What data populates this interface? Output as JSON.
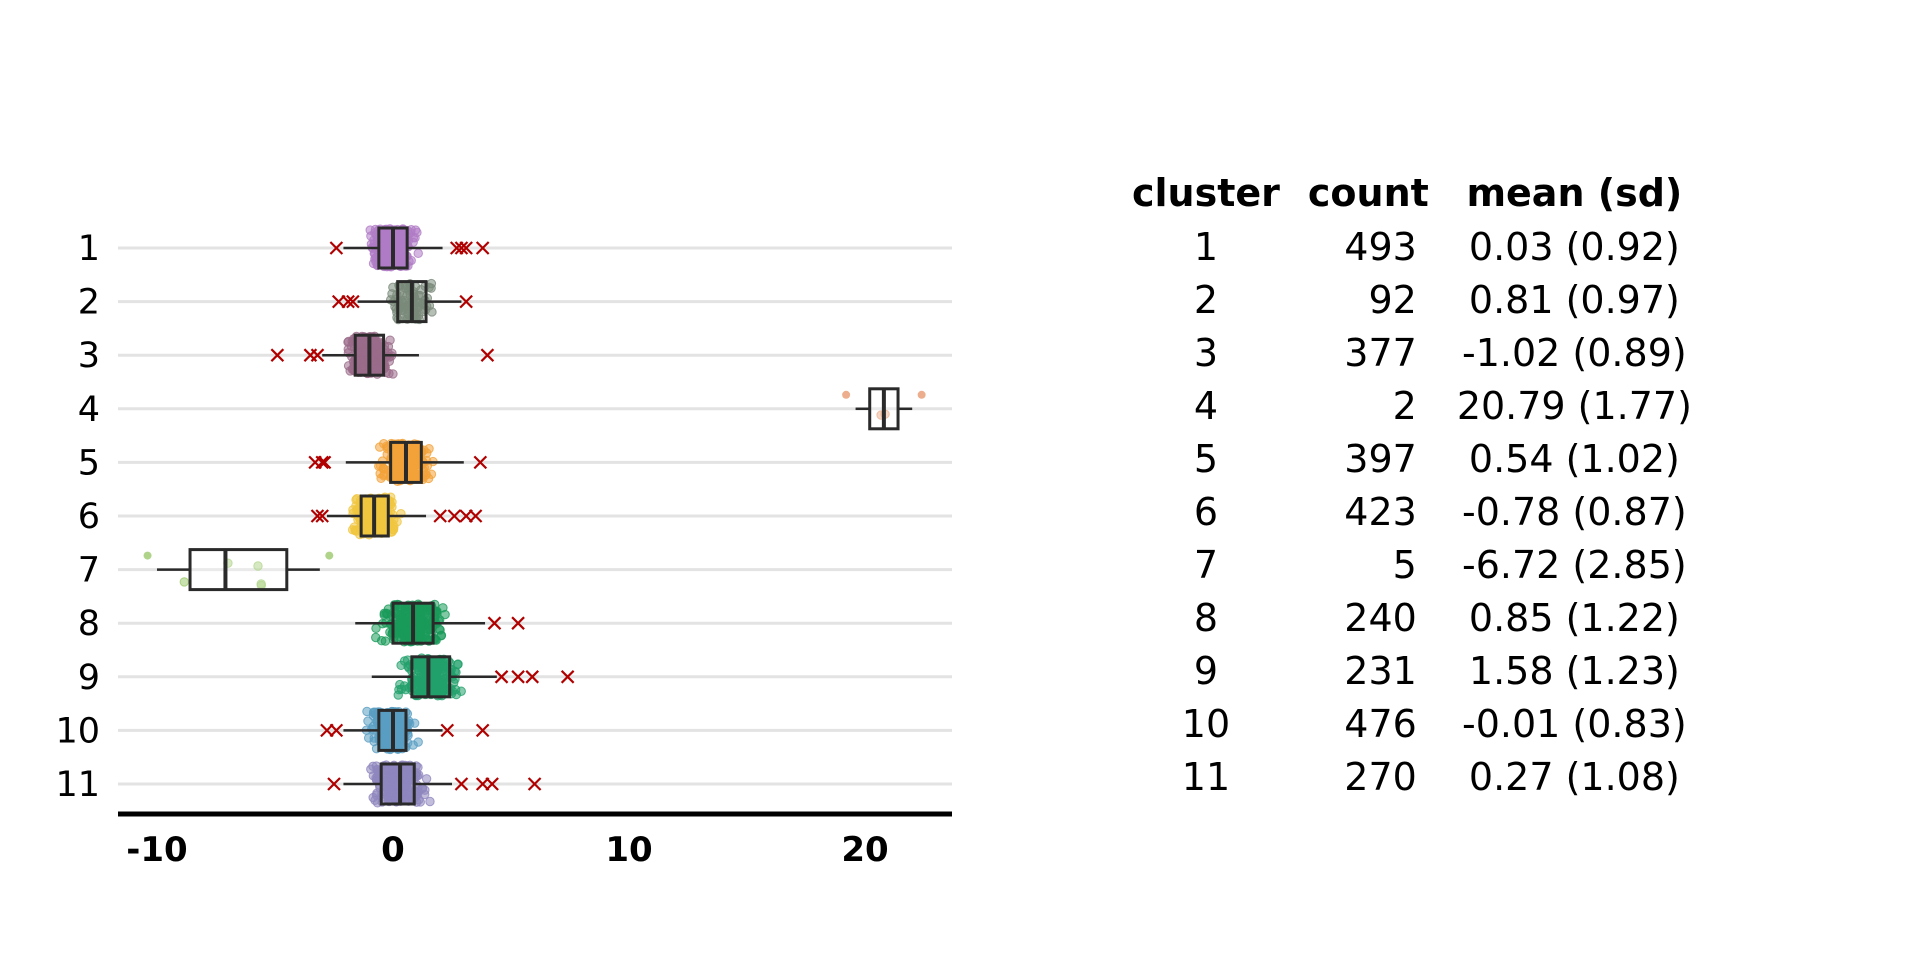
{
  "chart_data": {
    "type": "boxplot",
    "orientation": "horizontal",
    "title": "",
    "xlabel": "",
    "ylabel": "",
    "xlim": [
      -11.5,
      23.5
    ],
    "xticks": [
      -10,
      0,
      10,
      20
    ],
    "xtick_labels": [
      "-10",
      "0",
      "10",
      "20"
    ],
    "grid": "horizontal",
    "legend": "none",
    "categories": [
      "1",
      "2",
      "3",
      "4",
      "5",
      "6",
      "7",
      "8",
      "9",
      "10",
      "11"
    ],
    "series": [
      {
        "label": "1",
        "color": "#b07cc6",
        "count": 493,
        "min": -2.1,
        "q1": -0.6,
        "median": 0.0,
        "q3": 0.6,
        "max": 2.1,
        "outliers": [
          -2.4,
          2.7,
          2.9,
          3.1,
          3.8
        ]
      },
      {
        "label": "2",
        "color": "#7a8a7a",
        "count": 92,
        "min": -1.5,
        "q1": 0.2,
        "median": 0.8,
        "q3": 1.4,
        "max": 2.9,
        "outliers": [
          -2.3,
          -1.9,
          -1.7,
          3.1
        ]
      },
      {
        "label": "3",
        "color": "#9a6b8a",
        "count": 377,
        "min": -3.0,
        "q1": -1.6,
        "median": -1.0,
        "q3": -0.4,
        "max": 1.1,
        "outliers": [
          -4.9,
          -3.5,
          -3.2,
          4.0
        ]
      },
      {
        "label": "4",
        "color": "#e89a70",
        "count": 2,
        "min": 19.6,
        "q1": 20.2,
        "median": 20.8,
        "q3": 21.4,
        "max": 22.0,
        "outliers": []
      },
      {
        "label": "5",
        "color": "#f2a33a",
        "count": 397,
        "min": -2.0,
        "q1": -0.1,
        "median": 0.55,
        "q3": 1.2,
        "max": 3.0,
        "outliers": [
          -3.3,
          -3.0,
          -2.9,
          3.7
        ]
      },
      {
        "label": "6",
        "color": "#f0c640",
        "count": 423,
        "min": -2.8,
        "q1": -1.35,
        "median": -0.8,
        "q3": -0.2,
        "max": 1.4,
        "outliers": [
          -3.2,
          -3.0,
          2.0,
          2.6,
          3.1,
          3.5
        ]
      },
      {
        "label": "7",
        "color": "#9bc96b",
        "count": 5,
        "min": -10.0,
        "q1": -8.6,
        "median": -7.1,
        "q3": -4.5,
        "max": -3.1,
        "outliers": []
      },
      {
        "label": "8",
        "color": "#1a9a5a",
        "count": 240,
        "min": -1.6,
        "q1": 0.0,
        "median": 0.85,
        "q3": 1.7,
        "max": 3.9,
        "outliers": [
          4.3,
          5.3
        ]
      },
      {
        "label": "9",
        "color": "#22a06b",
        "count": 231,
        "min": -0.9,
        "q1": 0.8,
        "median": 1.5,
        "q3": 2.4,
        "max": 4.4,
        "outliers": [
          4.6,
          5.3,
          5.9,
          7.4
        ]
      },
      {
        "label": "10",
        "color": "#5a9ec2",
        "count": 476,
        "min": -2.1,
        "q1": -0.6,
        "median": 0.0,
        "q3": 0.55,
        "max": 2.1,
        "outliers": [
          -2.8,
          -2.4,
          2.3,
          3.8
        ]
      },
      {
        "label": "11",
        "color": "#8e86be",
        "count": 270,
        "min": -2.1,
        "q1": -0.5,
        "median": 0.3,
        "q3": 0.9,
        "max": 2.5,
        "outliers": [
          -2.5,
          2.9,
          3.8,
          4.2,
          6.0
        ]
      }
    ],
    "outlier_color": "#b00000",
    "box_color": "#2a2a2a"
  },
  "table": {
    "headers": [
      "cluster",
      "count",
      "mean (sd)"
    ],
    "rows": [
      [
        "1",
        "493",
        "0.03 (0.92)"
      ],
      [
        "2",
        "92",
        "0.81 (0.97)"
      ],
      [
        "3",
        "377",
        "-1.02 (0.89)"
      ],
      [
        "4",
        "2",
        "20.79 (1.77)"
      ],
      [
        "5",
        "397",
        "0.54 (1.02)"
      ],
      [
        "6",
        "423",
        "-0.78 (0.87)"
      ],
      [
        "7",
        "5",
        "-6.72 (2.85)"
      ],
      [
        "8",
        "240",
        "0.85 (1.22)"
      ],
      [
        "9",
        "231",
        "1.58 (1.23)"
      ],
      [
        "10",
        "476",
        "-0.01 (0.83)"
      ],
      [
        "11",
        "270",
        "0.27 (1.08)"
      ]
    ]
  }
}
